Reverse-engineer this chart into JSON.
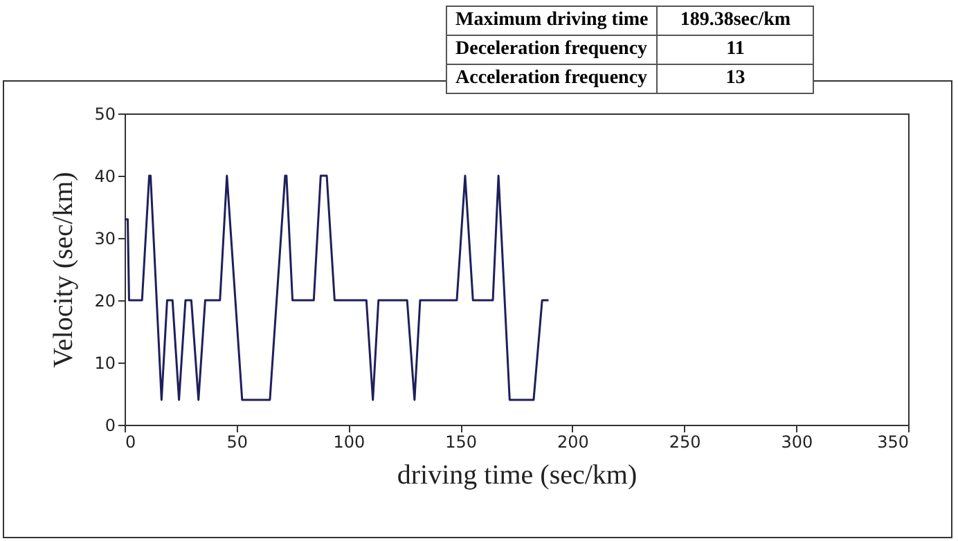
{
  "chart_data": {
    "type": "line",
    "xlabel": "driving time (sec/km)",
    "ylabel": "Velocity (sec/km)",
    "x": [
      0,
      1.4,
      2,
      7.8,
      11,
      11.6,
      16.5,
      19,
      21.4,
      24.3,
      27.2,
      29.8,
      33,
      36,
      42.6,
      45.7,
      52.5,
      64.9,
      71.7,
      72.3,
      75,
      84.5,
      87.6,
      90.3,
      93.8,
      108,
      110.9,
      113.4,
      126.2,
      129.5,
      132,
      148.4,
      152.1,
      155.6,
      164.5,
      167,
      172,
      182.7,
      186.5,
      189.38
    ],
    "series": [
      {
        "color": "#1f1f5c",
        "values": [
          33,
          33,
          20,
          20,
          40,
          40,
          4,
          20,
          20,
          4,
          20,
          20,
          4,
          20,
          20,
          40,
          4,
          4,
          40,
          40,
          20,
          20,
          40,
          40,
          20,
          20,
          4,
          20,
          20,
          4,
          20,
          20,
          40,
          20,
          20,
          40,
          4,
          4,
          20,
          20
        ]
      }
    ],
    "xlim": [
      0,
      350
    ],
    "xticks": [
      0,
      50,
      100,
      150,
      200,
      250,
      300,
      350
    ],
    "ylim": [
      0,
      50
    ],
    "yticks": [
      0,
      10,
      20,
      30,
      40,
      50
    ],
    "grid": false,
    "marker": "none",
    "line_style": "solid",
    "annotations": [
      "Maximum driving time",
      "189.38sec/km",
      "Deceleration frequency",
      "11",
      "Acceleration frequency",
      "13"
    ]
  }
}
